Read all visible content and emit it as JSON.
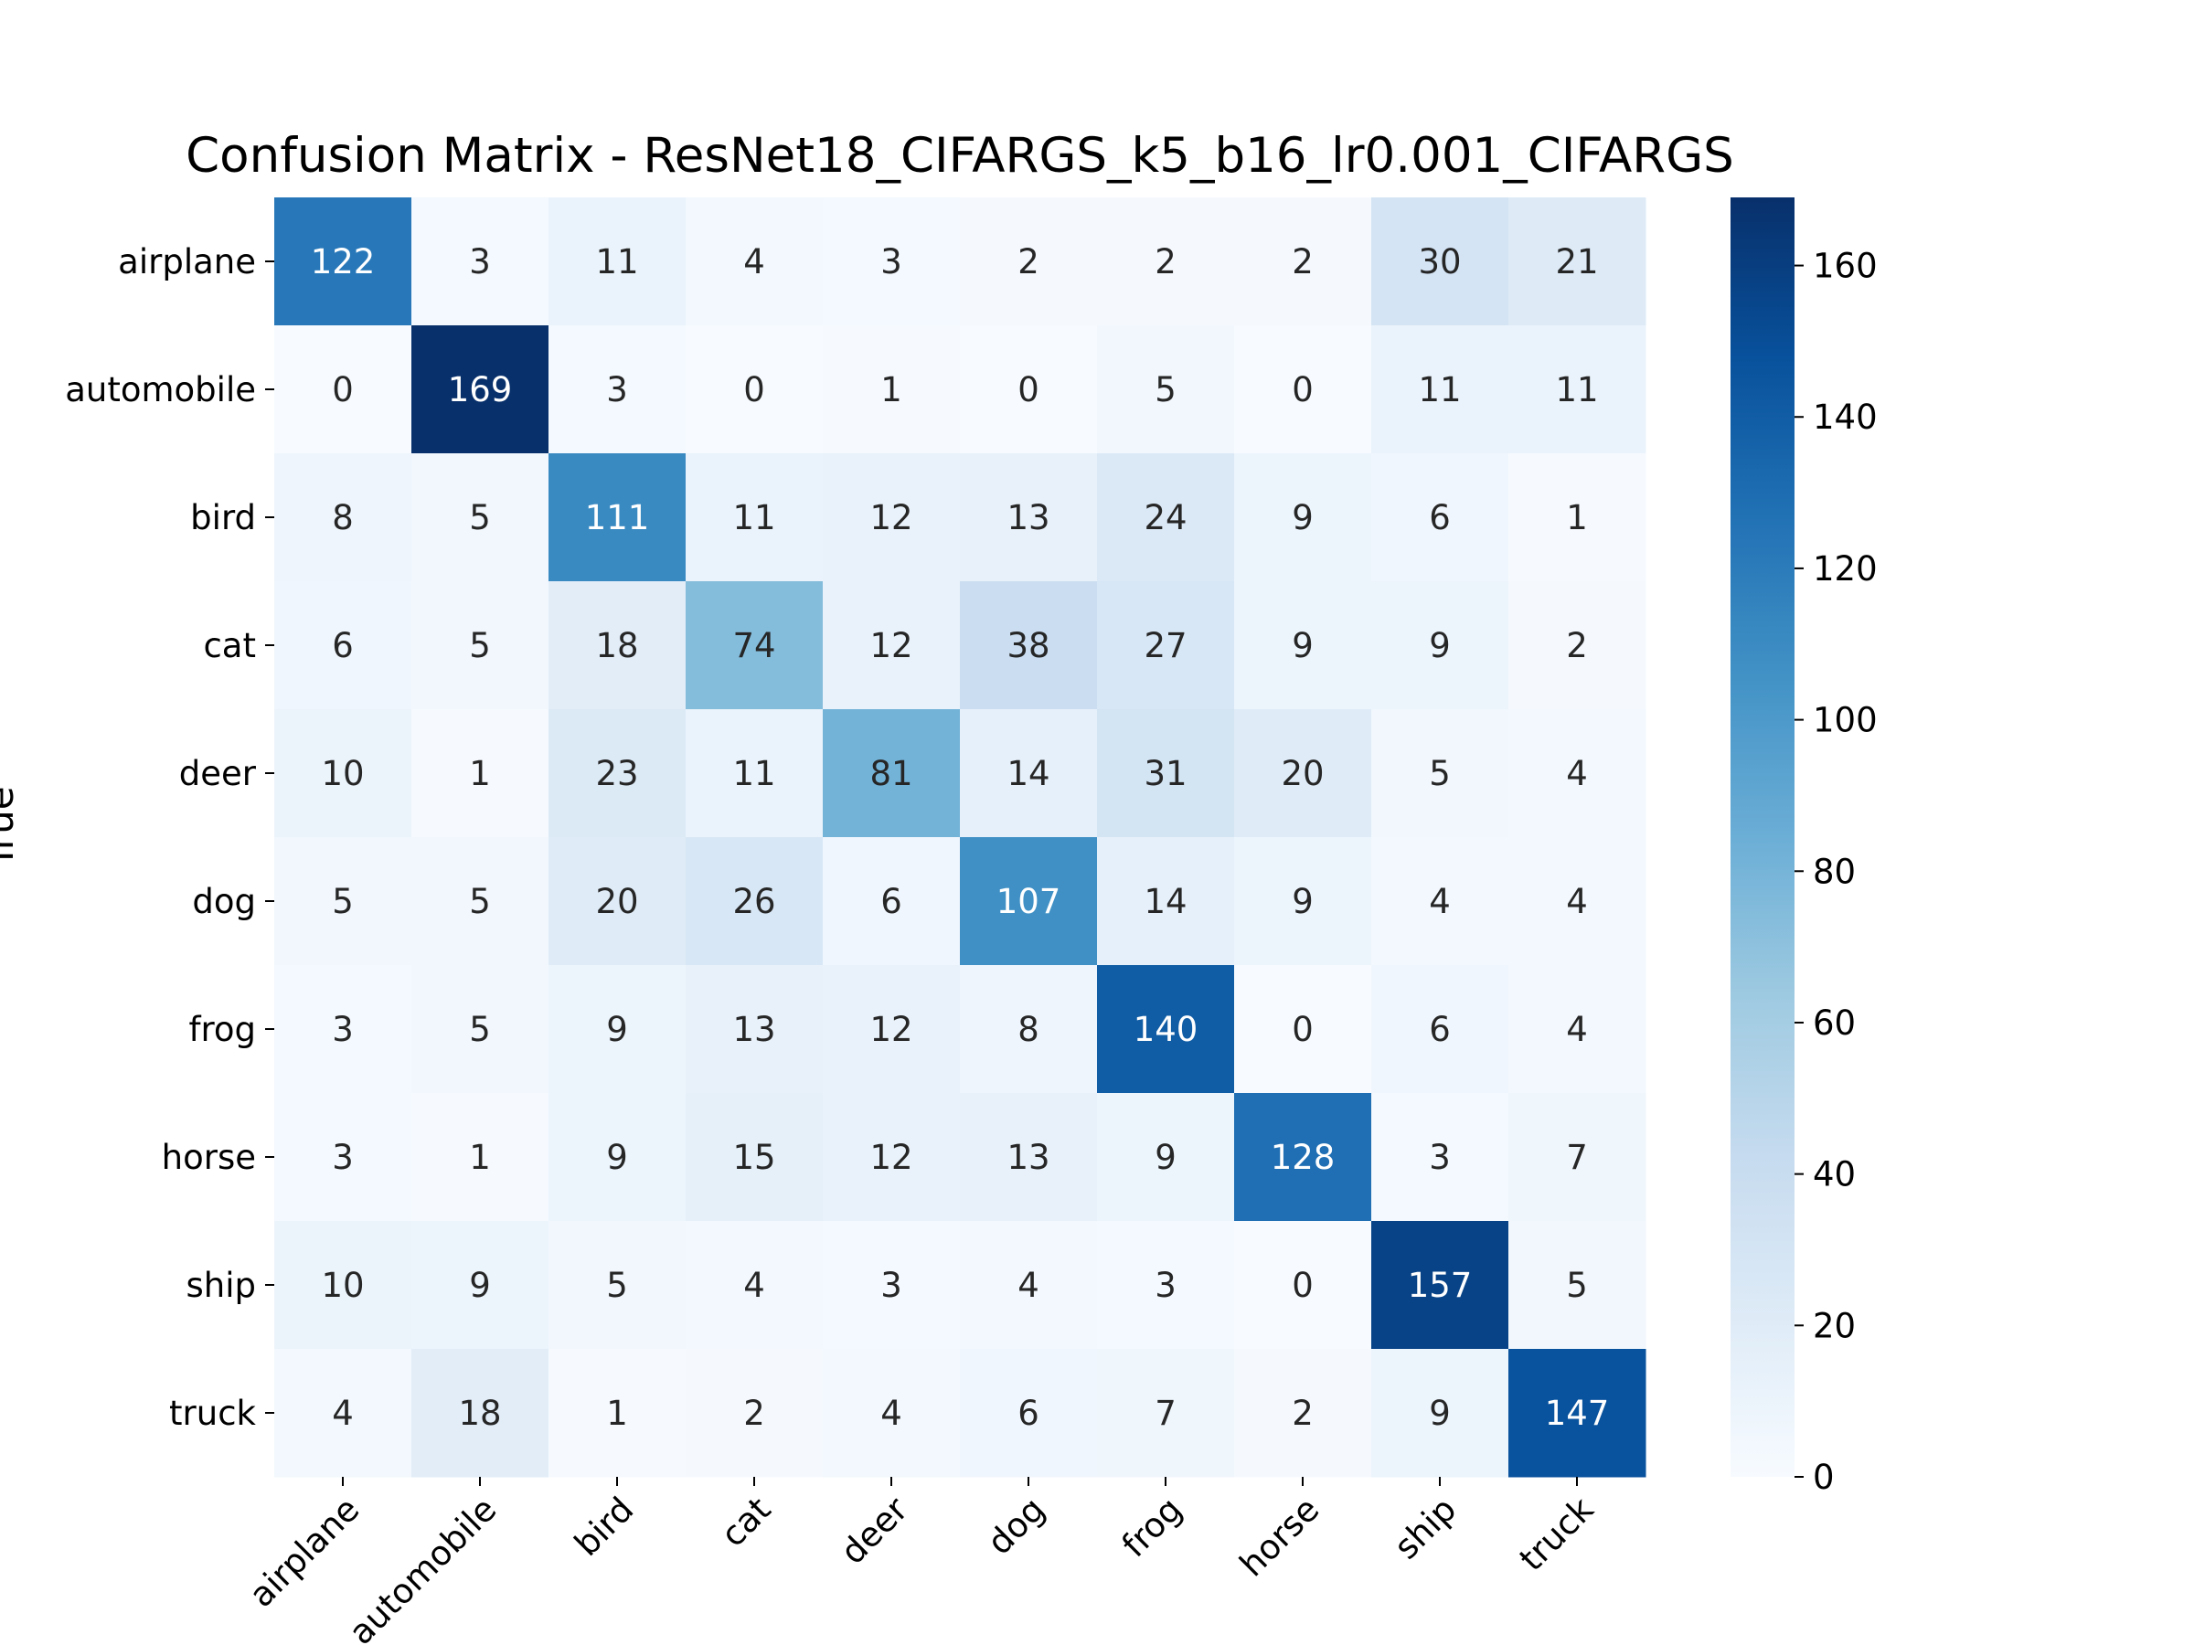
{
  "chart_data": {
    "type": "heatmap",
    "title": "Confusion Matrix - ResNet18_CIFARGS_k5_b16_lr0.001_CIFARGS",
    "ylabel": "True",
    "xlabel": "",
    "row_labels": [
      "airplane",
      "automobile",
      "bird",
      "cat",
      "deer",
      "dog",
      "frog",
      "horse",
      "ship",
      "truck"
    ],
    "col_labels": [
      "airplane",
      "automobile",
      "bird",
      "cat",
      "deer",
      "dog",
      "frog",
      "horse",
      "ship",
      "truck"
    ],
    "values": [
      [
        122,
        3,
        11,
        4,
        3,
        2,
        2,
        2,
        30,
        21
      ],
      [
        0,
        169,
        3,
        0,
        1,
        0,
        5,
        0,
        11,
        11
      ],
      [
        8,
        5,
        111,
        11,
        12,
        13,
        24,
        9,
        6,
        1
      ],
      [
        6,
        5,
        18,
        74,
        12,
        38,
        27,
        9,
        9,
        2
      ],
      [
        10,
        1,
        23,
        11,
        81,
        14,
        31,
        20,
        5,
        4
      ],
      [
        5,
        5,
        20,
        26,
        6,
        107,
        14,
        9,
        4,
        4
      ],
      [
        3,
        5,
        9,
        13,
        12,
        8,
        140,
        0,
        6,
        4
      ],
      [
        3,
        1,
        9,
        15,
        12,
        13,
        9,
        128,
        3,
        7
      ],
      [
        10,
        9,
        5,
        4,
        3,
        4,
        3,
        0,
        157,
        5
      ],
      [
        4,
        18,
        1,
        2,
        4,
        6,
        7,
        2,
        9,
        147
      ]
    ],
    "colormap": "Blues",
    "colorbar": {
      "min": 0,
      "max": 169,
      "ticks": [
        0,
        20,
        40,
        60,
        80,
        100,
        120,
        140,
        160
      ]
    }
  }
}
